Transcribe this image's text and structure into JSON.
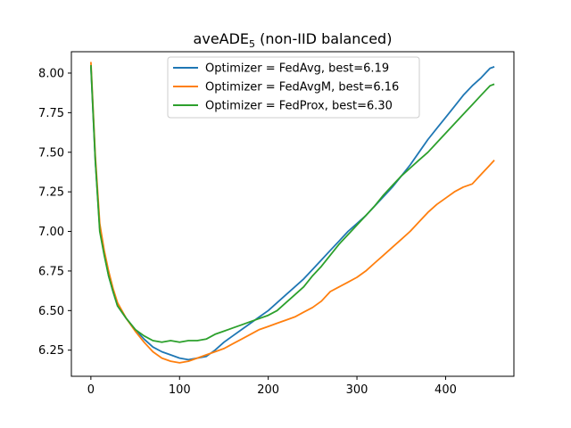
{
  "chart_data": {
    "type": "line",
    "title_main": "aveADE",
    "title_sub": "5",
    "title_rest": " (non-IID balanced)",
    "xlabel": "",
    "ylabel": "",
    "xlim": [
      -22,
      477
    ],
    "ylim": [
      6.085,
      8.135
    ],
    "xticks": [
      0,
      100,
      200,
      300,
      400
    ],
    "yticks": [
      6.25,
      6.5,
      6.75,
      7.0,
      7.25,
      7.5,
      7.75,
      8.0
    ],
    "ytick_labels": [
      "6.25",
      "6.50",
      "6.75",
      "7.00",
      "7.25",
      "7.50",
      "7.75",
      "8.00"
    ],
    "legend_position": "upper-center",
    "grid": false,
    "series": [
      {
        "name": "Optimizer = FedAvg, best=6.19",
        "color": "#1f77b4",
        "x": [
          0,
          5,
          10,
          15,
          20,
          25,
          30,
          40,
          50,
          60,
          70,
          80,
          90,
          100,
          110,
          120,
          130,
          140,
          150,
          160,
          170,
          180,
          190,
          200,
          210,
          220,
          230,
          240,
          250,
          260,
          270,
          280,
          290,
          300,
          310,
          320,
          330,
          340,
          350,
          360,
          370,
          380,
          390,
          400,
          410,
          420,
          430,
          440,
          450,
          455
        ],
        "y": [
          8.04,
          7.45,
          7.02,
          6.86,
          6.72,
          6.62,
          6.53,
          6.45,
          6.38,
          6.32,
          6.27,
          6.24,
          6.22,
          6.2,
          6.19,
          6.2,
          6.21,
          6.25,
          6.3,
          6.34,
          6.38,
          6.42,
          6.46,
          6.5,
          6.55,
          6.6,
          6.65,
          6.7,
          6.76,
          6.82,
          6.88,
          6.94,
          7.0,
          7.05,
          7.1,
          7.16,
          7.22,
          7.28,
          7.35,
          7.42,
          7.5,
          7.58,
          7.65,
          7.72,
          7.79,
          7.86,
          7.92,
          7.97,
          8.03,
          8.04
        ]
      },
      {
        "name": "Optimizer = FedAvgM, best=6.16",
        "color": "#ff7f0e",
        "x": [
          0,
          5,
          10,
          15,
          20,
          25,
          30,
          40,
          50,
          60,
          70,
          80,
          90,
          100,
          110,
          120,
          130,
          140,
          150,
          160,
          170,
          180,
          190,
          200,
          210,
          220,
          230,
          240,
          250,
          260,
          270,
          280,
          290,
          300,
          310,
          320,
          330,
          340,
          350,
          360,
          370,
          380,
          390,
          400,
          410,
          420,
          430,
          440,
          450,
          455
        ],
        "y": [
          8.07,
          7.48,
          7.05,
          6.88,
          6.75,
          6.64,
          6.55,
          6.45,
          6.37,
          6.3,
          6.24,
          6.2,
          6.18,
          6.17,
          6.18,
          6.2,
          6.22,
          6.24,
          6.26,
          6.29,
          6.32,
          6.35,
          6.38,
          6.4,
          6.42,
          6.44,
          6.46,
          6.49,
          6.52,
          6.56,
          6.62,
          6.65,
          6.68,
          6.71,
          6.75,
          6.8,
          6.85,
          6.9,
          6.95,
          7.0,
          7.06,
          7.12,
          7.17,
          7.21,
          7.25,
          7.28,
          7.3,
          7.36,
          7.42,
          7.45
        ]
      },
      {
        "name": "Optimizer = FedProx, best=6.30",
        "color": "#2ca02c",
        "x": [
          0,
          5,
          10,
          15,
          20,
          25,
          30,
          40,
          50,
          60,
          70,
          80,
          90,
          100,
          110,
          120,
          130,
          140,
          150,
          160,
          170,
          180,
          190,
          200,
          210,
          220,
          230,
          240,
          250,
          260,
          270,
          280,
          290,
          300,
          310,
          320,
          330,
          340,
          350,
          360,
          370,
          380,
          390,
          400,
          410,
          420,
          430,
          440,
          450,
          455
        ],
        "y": [
          8.05,
          7.45,
          7.0,
          6.85,
          6.72,
          6.62,
          6.53,
          6.45,
          6.38,
          6.34,
          6.31,
          6.3,
          6.31,
          6.3,
          6.31,
          6.31,
          6.32,
          6.35,
          6.37,
          6.39,
          6.41,
          6.43,
          6.45,
          6.47,
          6.5,
          6.55,
          6.6,
          6.65,
          6.72,
          6.78,
          6.85,
          6.92,
          6.98,
          7.04,
          7.1,
          7.16,
          7.23,
          7.29,
          7.35,
          7.4,
          7.45,
          7.5,
          7.56,
          7.62,
          7.68,
          7.74,
          7.8,
          7.86,
          7.92,
          7.93
        ]
      }
    ]
  }
}
